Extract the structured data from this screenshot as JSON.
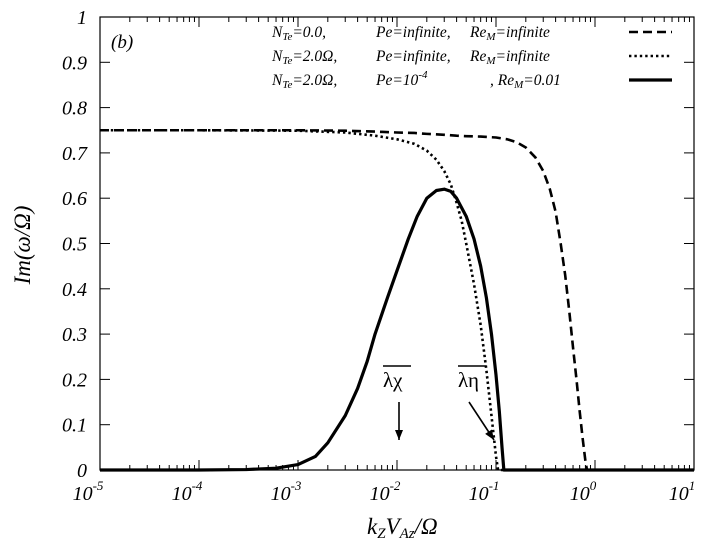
{
  "chart_data": {
    "type": "line",
    "panel_label": "(b)",
    "xlabel": "kZVAz/Ω",
    "ylabel": "Im(ω/Ω)",
    "x_scale": "log",
    "xlim": [
      1e-05,
      10
    ],
    "ylim": [
      0,
      1
    ],
    "x_ticks": [
      1e-05,
      0.0001,
      0.001,
      0.01,
      0.1,
      1.0,
      10.0
    ],
    "x_tick_labels": [
      {
        "base": "10",
        "exp": "-5"
      },
      {
        "base": "10",
        "exp": "-4"
      },
      {
        "base": "10",
        "exp": "-3"
      },
      {
        "base": "10",
        "exp": "-2"
      },
      {
        "base": "10",
        "exp": "-1"
      },
      {
        "base": "10",
        "exp": "0"
      },
      {
        "base": "10",
        "exp": "1"
      }
    ],
    "y_ticks": [
      0,
      0.1,
      0.2,
      0.3,
      0.4,
      0.5,
      0.6,
      0.7,
      0.8,
      0.9,
      1
    ],
    "y_tick_labels": [
      "0",
      "0.1",
      "0.2",
      "0.3",
      "0.4",
      "0.5",
      "0.6",
      "0.7",
      "0.8",
      "0.9",
      "1"
    ],
    "grid": false,
    "legend_position": "top-right",
    "series": [
      {
        "name": "NTe=0.0, Pe=infinite, ReM=infinite",
        "style": "dashed",
        "x": [
          1e-05,
          0.0001,
          0.001,
          0.003,
          0.006,
          0.01,
          0.015,
          0.02,
          0.03,
          0.04,
          0.05,
          0.07,
          0.1,
          0.13,
          0.16,
          0.2,
          0.25,
          0.3,
          0.35,
          0.4,
          0.45,
          0.5,
          0.55,
          0.6,
          0.65,
          0.7,
          0.75,
          0.8,
          0.83,
          0.85,
          1,
          10
        ],
        "y": [
          0.75,
          0.75,
          0.75,
          0.749,
          0.747,
          0.745,
          0.744,
          0.742,
          0.74,
          0.738,
          0.737,
          0.736,
          0.734,
          0.73,
          0.724,
          0.712,
          0.69,
          0.66,
          0.62,
          0.57,
          0.5,
          0.43,
          0.35,
          0.27,
          0.2,
          0.13,
          0.07,
          0.02,
          0.0,
          0.0,
          0.0,
          0.0
        ]
      },
      {
        "name": "NTe=2.0Ω,Pe=infinite, ReM=infinite",
        "style": "dotted",
        "x": [
          1e-05,
          0.0001,
          0.001,
          0.003,
          0.006,
          0.01,
          0.015,
          0.02,
          0.025,
          0.03,
          0.035,
          0.04,
          0.045,
          0.05,
          0.06,
          0.07,
          0.08,
          0.09,
          0.1,
          0.105,
          1,
          10
        ],
        "y": [
          0.75,
          0.75,
          0.749,
          0.745,
          0.738,
          0.73,
          0.72,
          0.705,
          0.685,
          0.66,
          0.63,
          0.59,
          0.55,
          0.5,
          0.41,
          0.32,
          0.22,
          0.12,
          0.03,
          0.0,
          0.0,
          0.0
        ]
      },
      {
        "name": "NTe=2.0Ω,Pe=10-4 , ReM=0.01",
        "style": "solid",
        "x": [
          1e-05,
          0.0001,
          0.0003,
          0.0006,
          0.001,
          0.0015,
          0.002,
          0.003,
          0.004,
          0.005,
          0.006,
          0.008,
          0.01,
          0.013,
          0.016,
          0.02,
          0.025,
          0.03,
          0.035,
          0.04,
          0.05,
          0.06,
          0.07,
          0.08,
          0.09,
          0.1,
          0.108,
          0.115,
          0.12,
          1,
          10
        ],
        "y": [
          0.0,
          0.0,
          0.001,
          0.004,
          0.012,
          0.03,
          0.06,
          0.12,
          0.18,
          0.24,
          0.3,
          0.38,
          0.44,
          0.51,
          0.56,
          0.6,
          0.617,
          0.62,
          0.615,
          0.6,
          0.56,
          0.51,
          0.45,
          0.38,
          0.3,
          0.21,
          0.13,
          0.05,
          0.0,
          0.0,
          0.0
        ]
      }
    ],
    "legend_labels": [
      {
        "n": "N",
        "n_sub": "Te",
        "eq": "=0.0,",
        "pe": "Pe=infinite,",
        "pe_sup": "",
        "re": "Re",
        "re_sub": "M",
        "re_val": "=infinite"
      },
      {
        "n": "N",
        "n_sub": "Te",
        "eq": "=2.0Ω,",
        "pe": "Pe=infinite,",
        "pe_sup": "",
        "re": "Re",
        "re_sub": "M",
        "re_val": "=infinite"
      },
      {
        "n": "N",
        "n_sub": "Te",
        "eq": "=2.0Ω,",
        "pe": "Pe=10",
        "pe_sup": "-4",
        "re": ", Re",
        "re_sub": "M",
        "re_val": "=0.01"
      }
    ],
    "annotations": [
      {
        "label": "λχ",
        "x": 0.01
      },
      {
        "label": "λη",
        "x": 0.1
      }
    ]
  }
}
